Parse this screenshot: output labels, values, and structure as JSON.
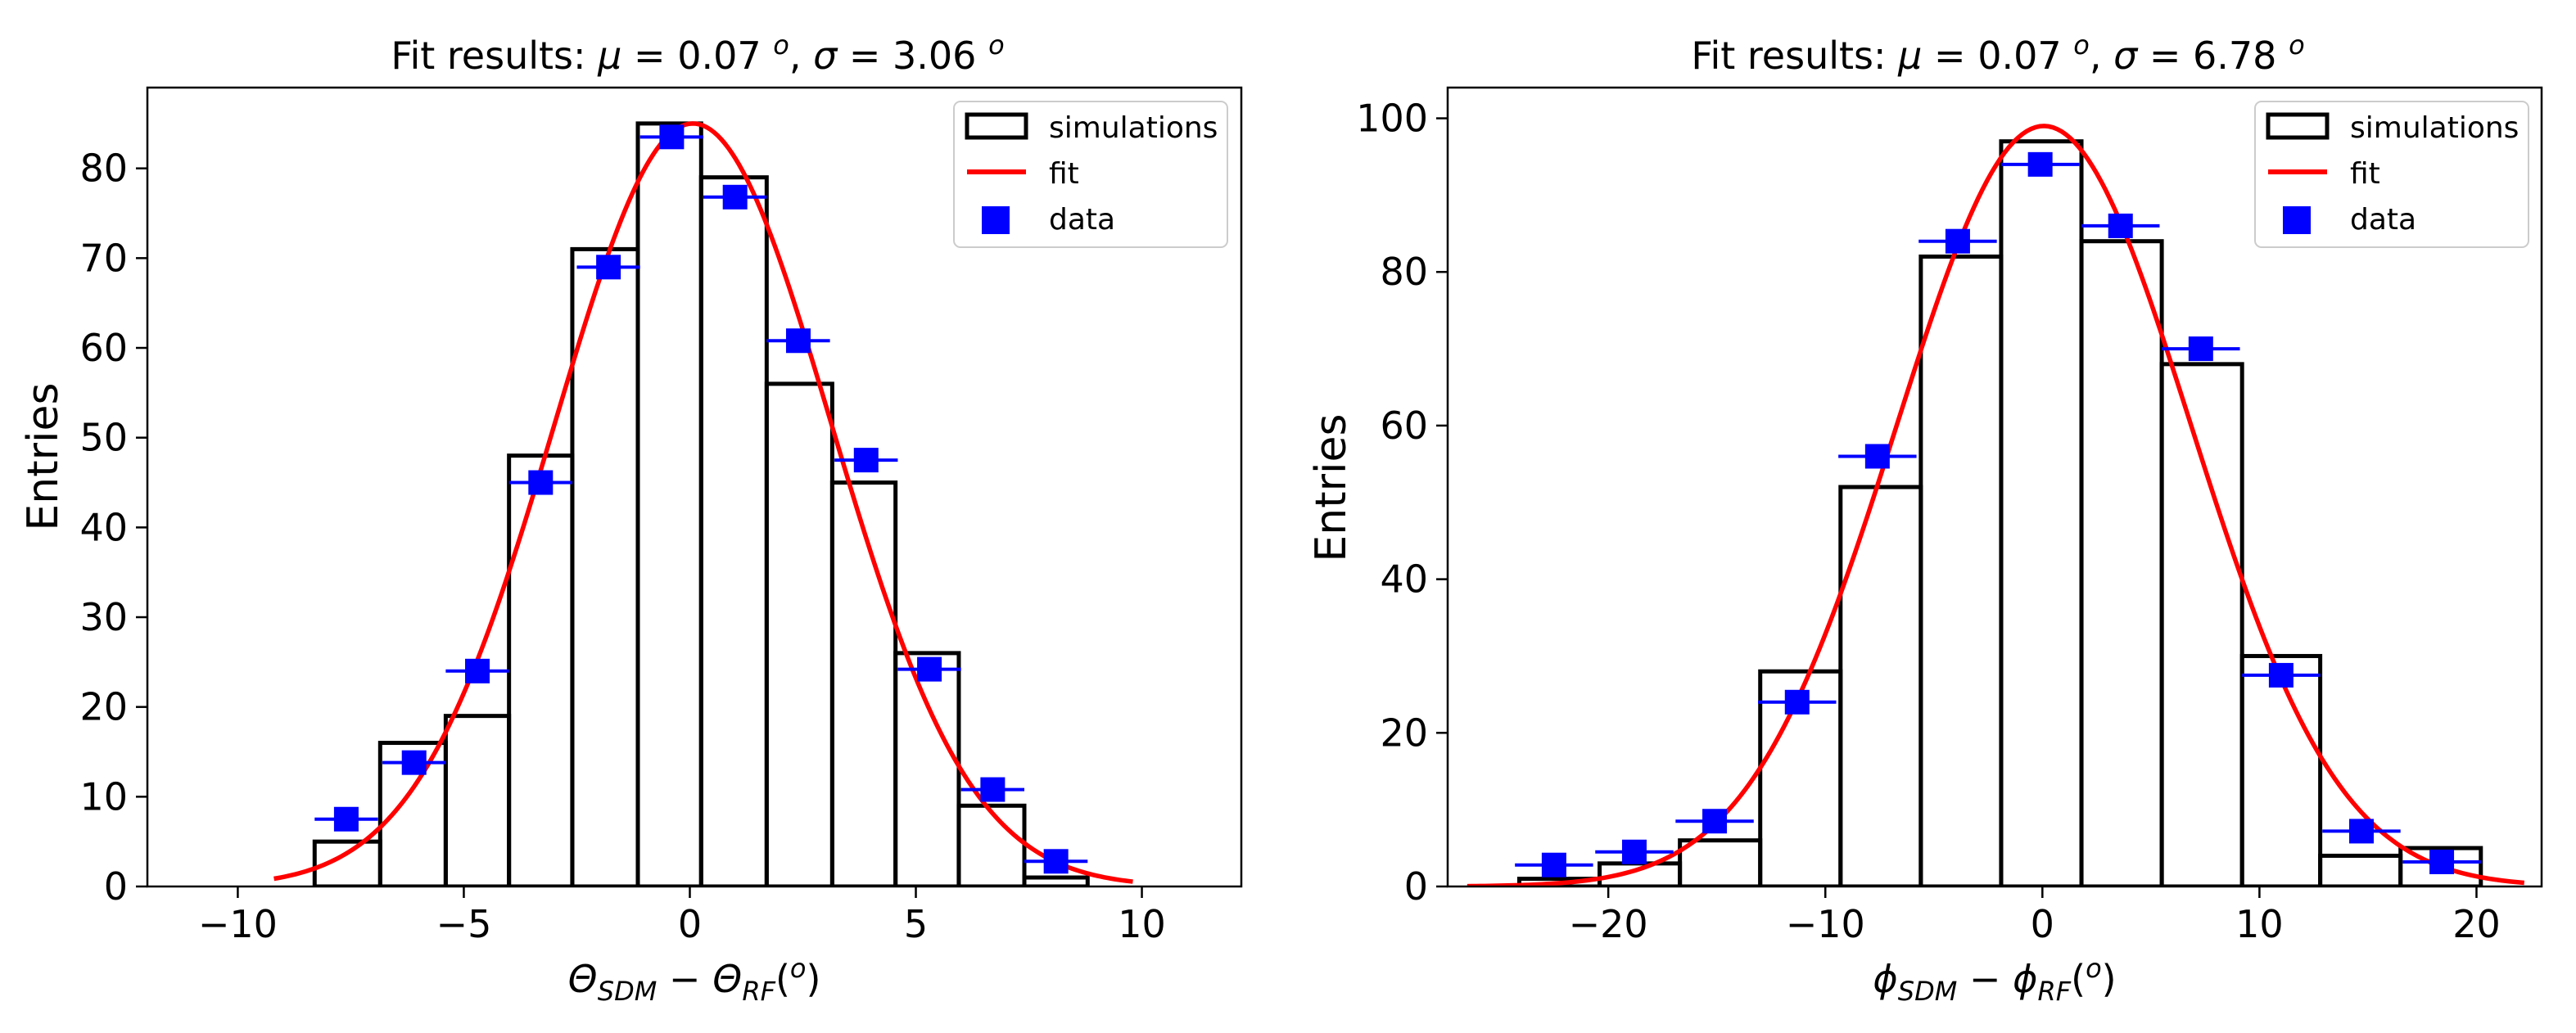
{
  "chart_data": [
    {
      "type": "bar",
      "title_prefix": "Fit results: ",
      "title_mu": "μ",
      "title_mid1": " = 0.07 ",
      "title_deg1": "o",
      "title_mid2": ", ",
      "title_sigma": "σ",
      "title_mid3": " = 3.06 ",
      "title_deg2": "o",
      "ylabel": "Entries",
      "xlabel": {
        "main1": "Θ",
        "sub1": "SDM",
        "minus": " − ",
        "main2": "Θ",
        "sub2": "RF",
        "open": "(",
        "sup": "o",
        "close": ")"
      },
      "xlim": [
        -12,
        12.2
      ],
      "ylim": [
        0,
        89
      ],
      "xticks": [
        -10,
        -5,
        0,
        5,
        10
      ],
      "xtick_labels": [
        "−10",
        "−5",
        "0",
        "5",
        "10"
      ],
      "yticks": [
        0,
        10,
        20,
        30,
        40,
        50,
        60,
        70,
        80
      ],
      "ytick_labels": [
        "0",
        "10",
        "20",
        "30",
        "40",
        "50",
        "60",
        "70",
        "80"
      ],
      "legend": [
        "simulations",
        "fit",
        "data"
      ],
      "legend_loc": "upper right",
      "simulations": {
        "bin_edges": [
          -8.3,
          -6.85,
          -5.4,
          -4.0,
          -2.6,
          -1.15,
          0.25,
          1.7,
          3.15,
          4.55,
          5.95,
          7.4,
          8.8
        ],
        "counts": [
          5,
          16,
          19,
          48,
          71,
          85,
          79,
          56,
          45,
          26,
          9,
          1
        ]
      },
      "fit": {
        "mu": 0.07,
        "sigma": 3.06,
        "amplitude": 85,
        "x_range": [
          -9.2,
          9.8
        ]
      },
      "data": {
        "x": [
          -7.6,
          -6.1,
          -4.7,
          -3.3,
          -1.8,
          -0.4,
          1.0,
          2.4,
          3.9,
          5.3,
          6.7,
          8.1
        ],
        "y": [
          7.5,
          13.8,
          24,
          45,
          69,
          83.5,
          76.8,
          60.8,
          47.5,
          24.2,
          10.8,
          2.8
        ],
        "xerr": 0.7
      }
    },
    {
      "type": "bar",
      "title_prefix": "Fit results: ",
      "title_mu": "μ",
      "title_mid1": " = 0.07 ",
      "title_deg1": "o",
      "title_mid2": ", ",
      "title_sigma": "σ",
      "title_mid3": " = 6.78 ",
      "title_deg2": "o",
      "ylabel": "Entries",
      "xlabel": {
        "main1": "ϕ",
        "sub1": "SDM",
        "minus": " − ",
        "main2": "ϕ",
        "sub2": "RF",
        "open": "(",
        "sup": "o",
        "close": ")"
      },
      "xlim": [
        -27.4,
        23
      ],
      "ylim": [
        0,
        104
      ],
      "xticks": [
        -20,
        -10,
        0,
        10,
        20
      ],
      "xtick_labels": [
        "−20",
        "−10",
        "0",
        "10",
        "20"
      ],
      "yticks": [
        0,
        20,
        40,
        60,
        80,
        100
      ],
      "ytick_labels": [
        "0",
        "20",
        "40",
        "60",
        "80",
        "100"
      ],
      "legend": [
        "simulations",
        "fit",
        "data"
      ],
      "legend_loc": "upper right",
      "simulations": {
        "bin_edges": [
          -24.1,
          -20.4,
          -16.7,
          -13.0,
          -9.3,
          -5.6,
          -1.9,
          1.8,
          5.5,
          9.2,
          12.8,
          16.5,
          20.2
        ],
        "counts": [
          1,
          3,
          6,
          28,
          52,
          82,
          97,
          84,
          68,
          30,
          4,
          5
        ]
      },
      "fit": {
        "mu": 0.07,
        "sigma": 6.78,
        "amplitude": 99,
        "x_range": [
          -26.5,
          22.2
        ]
      },
      "data": {
        "x": [
          -22.5,
          -18.8,
          -15.1,
          -11.3,
          -7.6,
          -3.9,
          -0.1,
          3.6,
          7.3,
          11.0,
          14.7,
          18.4
        ],
        "y": [
          2.8,
          4.5,
          8.5,
          24,
          56,
          84,
          94,
          86,
          70,
          27.5,
          7.2,
          3.2
        ],
        "xerr": 1.8
      }
    }
  ]
}
